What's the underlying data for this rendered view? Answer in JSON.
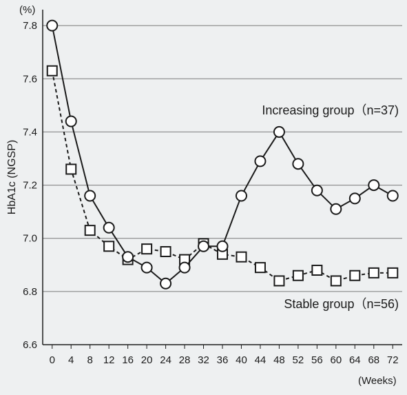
{
  "chart_data": {
    "type": "line",
    "x_unit_label": "(Weeks)",
    "y_unit_label": "(%)",
    "ylabel": "HbA1c (NGSP)",
    "xlabel": "",
    "title": "",
    "x": [
      0,
      4,
      8,
      12,
      16,
      20,
      24,
      28,
      32,
      36,
      40,
      44,
      48,
      52,
      56,
      60,
      64,
      68,
      72
    ],
    "x_tick_labels": [
      "0",
      "4",
      "8",
      "12",
      "16",
      "20",
      "24",
      "28",
      "32",
      "36",
      "40",
      "44",
      "48",
      "52",
      "56",
      "60",
      "64",
      "68",
      "72"
    ],
    "y_ticks": [
      6.6,
      6.8,
      7.0,
      7.2,
      7.4,
      7.6,
      7.8
    ],
    "y_tick_labels": [
      "6.6",
      "6.8",
      "7.0",
      "7.2",
      "7.4",
      "7.6",
      "7.8"
    ],
    "xlim": [
      -2,
      74
    ],
    "ylim": [
      6.6,
      7.86
    ],
    "grid": "horizontal",
    "legend": "none",
    "series": [
      {
        "name": "Increasing group（n=37)",
        "marker": "circle",
        "line_style": "solid",
        "values": [
          7.8,
          7.44,
          7.16,
          7.04,
          6.93,
          6.89,
          6.83,
          6.89,
          6.97,
          6.97,
          7.16,
          7.29,
          7.4,
          7.28,
          7.18,
          7.11,
          7.15,
          7.2,
          7.16
        ]
      },
      {
        "name": "Stable group（n=56)",
        "marker": "square",
        "line_style": "dashed",
        "values": [
          7.63,
          7.26,
          7.03,
          6.97,
          6.92,
          6.96,
          6.95,
          6.92,
          6.98,
          6.94,
          6.93,
          6.89,
          6.84,
          6.86,
          6.88,
          6.84,
          6.86,
          6.87,
          6.87
        ]
      }
    ],
    "colors": {
      "background": "#eef0f1",
      "ink": "#1a1a1a",
      "grid": "#7a7a7a",
      "marker_fill": "#ffffff"
    }
  }
}
